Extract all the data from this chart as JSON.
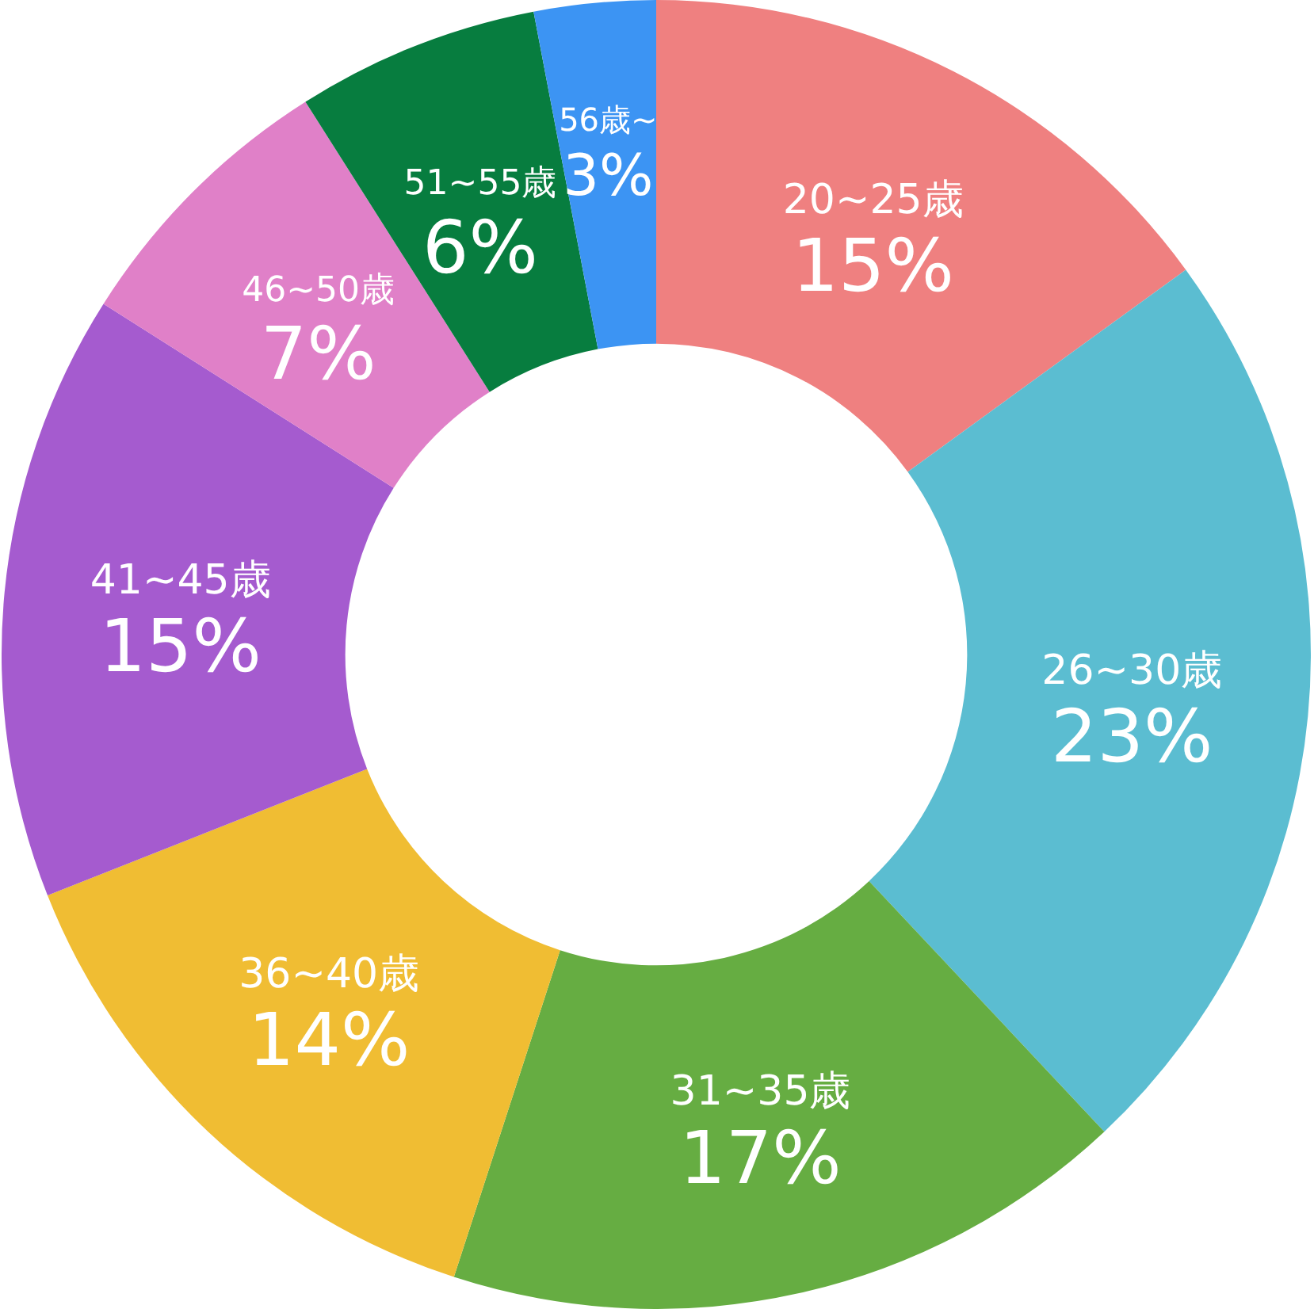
{
  "chart_data": {
    "type": "donut",
    "categories": [
      "20~25歳",
      "26~30歳",
      "31~35歳",
      "36~40歳",
      "41~45歳",
      "46~50歳",
      "51~55歳",
      "56歳~"
    ],
    "values": [
      15,
      23,
      17,
      14,
      15,
      7,
      6,
      3
    ],
    "value_labels": [
      "15%",
      "23%",
      "17%",
      "14%",
      "15%",
      "7%",
      "6%",
      "3%"
    ],
    "colors": [
      "#ef8080",
      "#5bbdd1",
      "#66ad42",
      "#f0bd33",
      "#a55bcf",
      "#e080c8",
      "#077d3f",
      "#3c94f3"
    ]
  }
}
